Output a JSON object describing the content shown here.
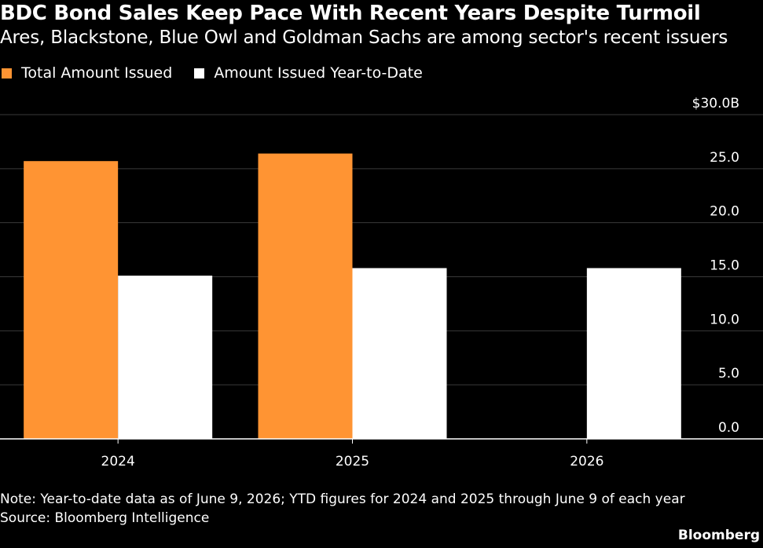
{
  "header": {
    "title": "BDC Bond Sales Keep Pace With Recent Years Despite Turmoil",
    "subtitle": "Ares, Blackstone, Blue Owl and Goldman Sachs are among sector's recent issuers"
  },
  "legend": {
    "items": [
      {
        "label": "Total Amount Issued",
        "color": "#FF9433"
      },
      {
        "label": "Amount Issued Year-to-Date",
        "color": "#FFFFFF"
      }
    ]
  },
  "chart_data": {
    "type": "bar",
    "categories": [
      "2024",
      "2025",
      "2026"
    ],
    "series": [
      {
        "name": "Total Amount Issued",
        "color": "#FF9433",
        "values": [
          25.7,
          26.4,
          null
        ]
      },
      {
        "name": "Amount Issued Year-to-Date",
        "color": "#FFFFFF",
        "values": [
          15.1,
          15.8,
          15.8
        ]
      }
    ],
    "ylim": [
      0,
      30
    ],
    "yticks": [
      0,
      5,
      10,
      15,
      20,
      25,
      30
    ],
    "ytick_labels": [
      "0.0",
      "5.0",
      "10.0",
      "15.0",
      "20.0",
      "25.0",
      "$30.0B"
    ],
    "axis_position": "right",
    "grid": true
  },
  "footer": {
    "note": "Note: Year-to-date data as of June 9, 2026; YTD figures for 2024 and 2025 through June 9 of each year",
    "source": "Source: Bloomberg Intelligence",
    "brand": "Bloomberg"
  }
}
